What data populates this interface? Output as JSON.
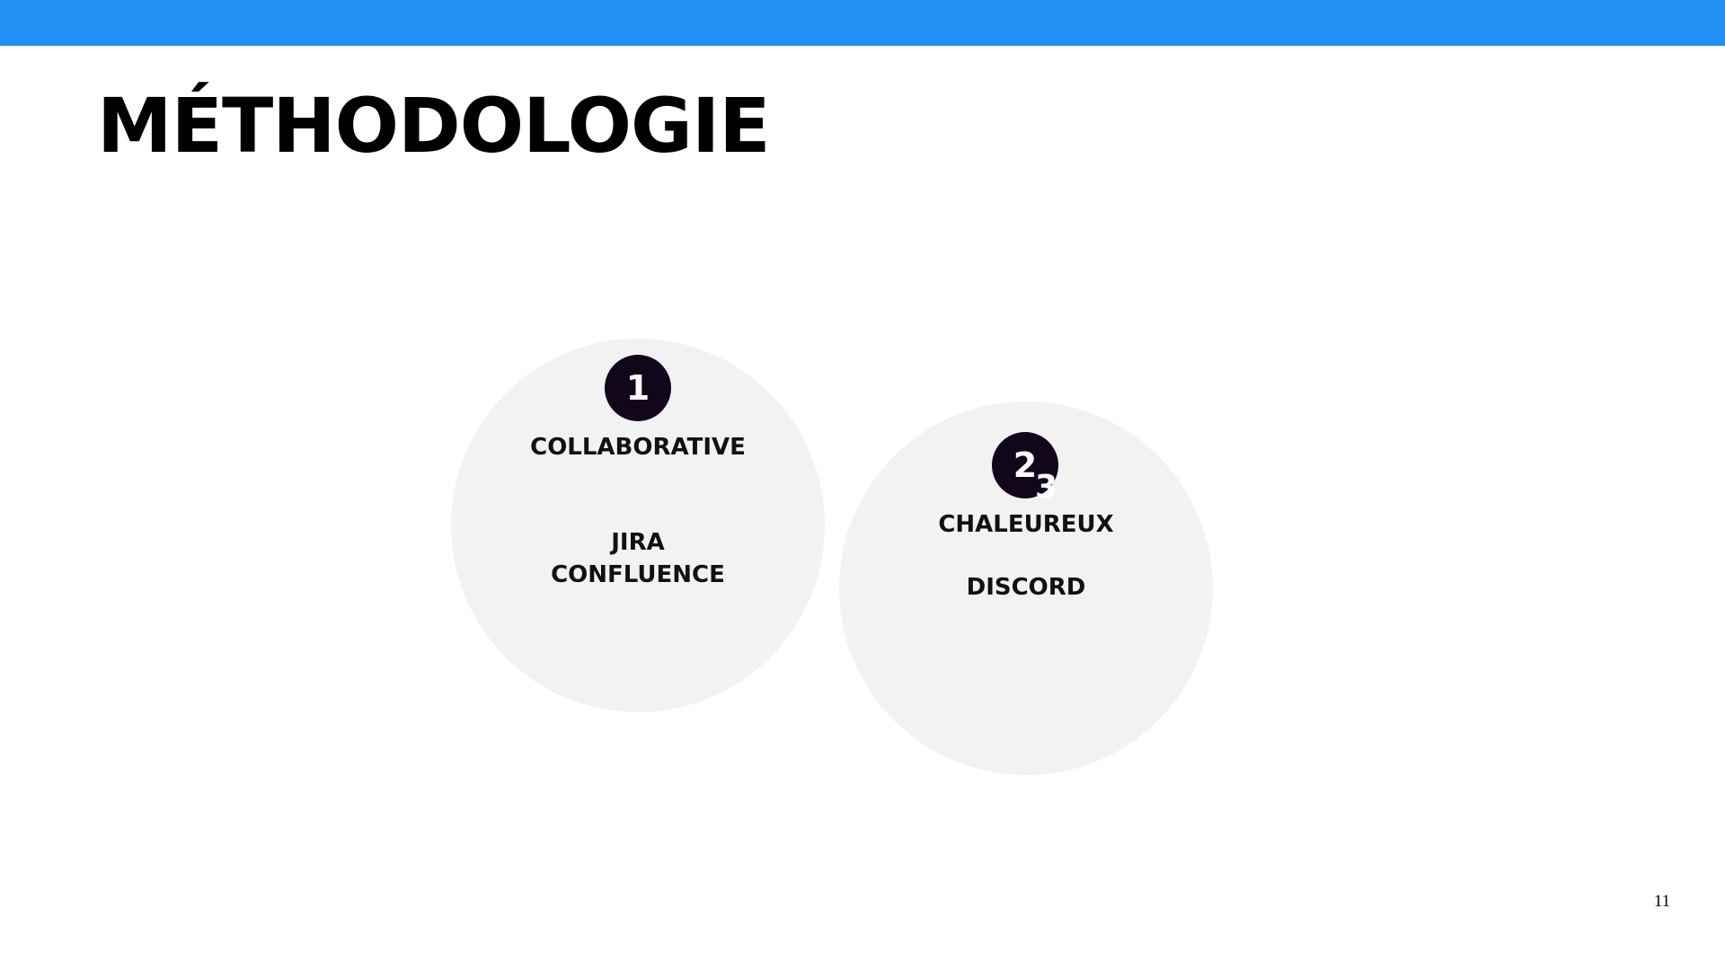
{
  "slide": {
    "title": "MÉTHODOLOGIE",
    "page_number": "11",
    "accent_color": "#2191f5",
    "badge_color": "#12061a",
    "circle_color": "#f2f2f2"
  },
  "items": [
    {
      "number": "1",
      "heading": "COLLABORATIVE",
      "tools": [
        "JIRA",
        "CONFLUENCE"
      ]
    },
    {
      "number": "2",
      "overlap_number": "3",
      "heading": "CHALEUREUX",
      "tools": [
        "DISCORD"
      ]
    }
  ]
}
